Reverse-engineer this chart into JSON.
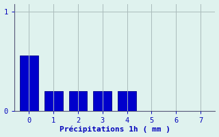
{
  "bar_values": [
    0.56,
    0.2,
    0.2,
    0.2,
    0.2,
    0,
    0,
    0
  ],
  "bar_positions": [
    0,
    1,
    2,
    3,
    4,
    5,
    6,
    7
  ],
  "bar_color": "#0000cc",
  "bar_edgecolor": "#000088",
  "background_color": "#dff2ee",
  "axes_background": "#dff2ee",
  "grid_color": "#aabbbb",
  "xlabel": "Précipitations 1h ( mm )",
  "xlabel_color": "#0000bb",
  "tick_color": "#0000bb",
  "axis_color": "#555577",
  "ylim": [
    0,
    1.08
  ],
  "xlim": [
    -0.6,
    7.6
  ],
  "yticks": [
    0,
    1
  ],
  "xticks": [
    0,
    1,
    2,
    3,
    4,
    5,
    6,
    7
  ],
  "xlabel_fontsize": 8,
  "tick_fontsize": 7.5,
  "bar_width": 0.75
}
